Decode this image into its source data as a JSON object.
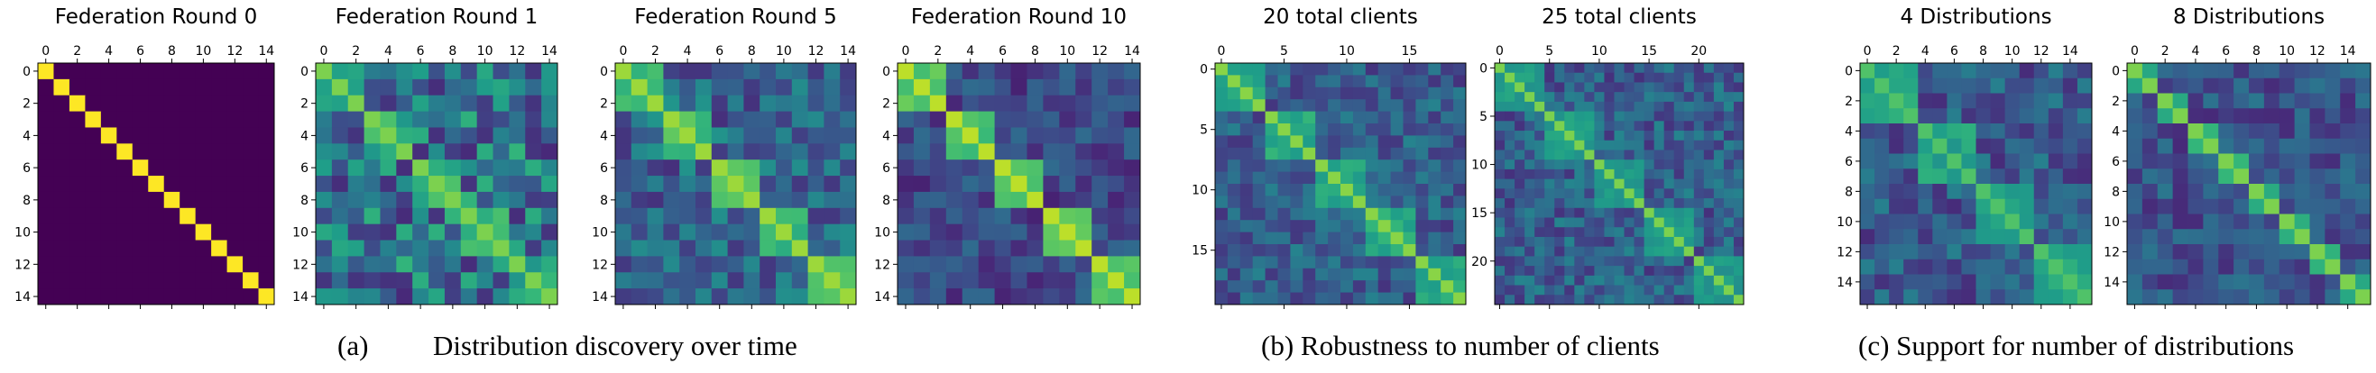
{
  "captions": {
    "a_label": "(a)",
    "a_text": "Distribution discovery over time",
    "b": "(b) Robustness to number of clients",
    "c": "(c) Support for number of distributions"
  },
  "colors": {
    "low": "#440154",
    "mid": "#31688e",
    "mid2": "#35b779",
    "high": "#fde725"
  },
  "chart_data": [
    {
      "type": "heatmap",
      "title": "Federation Round 0",
      "n": 15,
      "cluster_sizes": [
        1,
        1,
        1,
        1,
        1,
        1,
        1,
        1,
        1,
        1,
        1,
        1,
        1,
        1,
        1
      ],
      "ticks": [
        0,
        2,
        4,
        6,
        8,
        10,
        12,
        14
      ],
      "diag": 1.0,
      "in_block": 0.0,
      "background": 0.0,
      "seed": 11,
      "noise": 0.0,
      "colormap": "viridis",
      "xaxis_position": "top"
    },
    {
      "type": "heatmap",
      "title": "Federation Round 1",
      "n": 15,
      "cluster_sizes": [
        3,
        3,
        3,
        3,
        3
      ],
      "ticks": [
        0,
        2,
        4,
        6,
        8,
        10,
        12,
        14
      ],
      "diag": 0.8,
      "in_block": 0.62,
      "background": 0.38,
      "seed": 23,
      "noise": 0.34,
      "colormap": "viridis",
      "xaxis_position": "top"
    },
    {
      "type": "heatmap",
      "title": "Federation Round 5",
      "n": 15,
      "cluster_sizes": [
        3,
        3,
        3,
        3,
        3
      ],
      "ticks": [
        0,
        2,
        4,
        6,
        8,
        10,
        12,
        14
      ],
      "diag": 0.85,
      "in_block": 0.68,
      "background": 0.33,
      "seed": 37,
      "noise": 0.24,
      "colormap": "viridis",
      "xaxis_position": "top"
    },
    {
      "type": "heatmap",
      "title": "Federation Round 10",
      "n": 15,
      "cluster_sizes": [
        3,
        3,
        3,
        3,
        3
      ],
      "ticks": [
        0,
        2,
        4,
        6,
        8,
        10,
        12,
        14
      ],
      "diag": 0.9,
      "in_block": 0.72,
      "background": 0.22,
      "seed": 41,
      "noise": 0.16,
      "colormap": "viridis",
      "xaxis_position": "top"
    },
    {
      "type": "heatmap",
      "title": "20 total clients",
      "n": 20,
      "cluster_sizes": [
        4,
        4,
        4,
        4,
        4
      ],
      "xticks": [
        0,
        5,
        10,
        15
      ],
      "yticks": [
        0,
        5,
        10,
        15
      ],
      "diag": 0.82,
      "in_block": 0.6,
      "background": 0.3,
      "seed": 53,
      "noise": 0.2,
      "colormap": "viridis",
      "xaxis_position": "top"
    },
    {
      "type": "heatmap",
      "title": "25 total clients",
      "n": 25,
      "cluster_sizes": [
        5,
        5,
        5,
        5,
        5
      ],
      "xticks": [
        0,
        5,
        10,
        15,
        20
      ],
      "yticks": [
        0,
        5,
        10,
        15,
        20
      ],
      "diag": 0.8,
      "in_block": 0.55,
      "background": 0.3,
      "seed": 67,
      "noise": 0.2,
      "colormap": "viridis",
      "xaxis_position": "top"
    },
    {
      "type": "heatmap",
      "title": "4 Distributions",
      "n": 16,
      "cluster_sizes": [
        4,
        4,
        4,
        4
      ],
      "ticks": [
        0,
        2,
        4,
        6,
        8,
        10,
        12,
        14
      ],
      "diag": 0.72,
      "in_block": 0.58,
      "background": 0.28,
      "seed": 71,
      "noise": 0.2,
      "colormap": "viridis",
      "xaxis_position": "top"
    },
    {
      "type": "heatmap",
      "title": "8 Distributions",
      "n": 16,
      "cluster_sizes": [
        2,
        2,
        2,
        2,
        2,
        2,
        2,
        2
      ],
      "ticks": [
        0,
        2,
        4,
        6,
        8,
        10,
        12,
        14
      ],
      "diag": 0.8,
      "in_block": 0.62,
      "background": 0.26,
      "seed": 83,
      "noise": 0.18,
      "colormap": "viridis",
      "xaxis_position": "top"
    }
  ]
}
